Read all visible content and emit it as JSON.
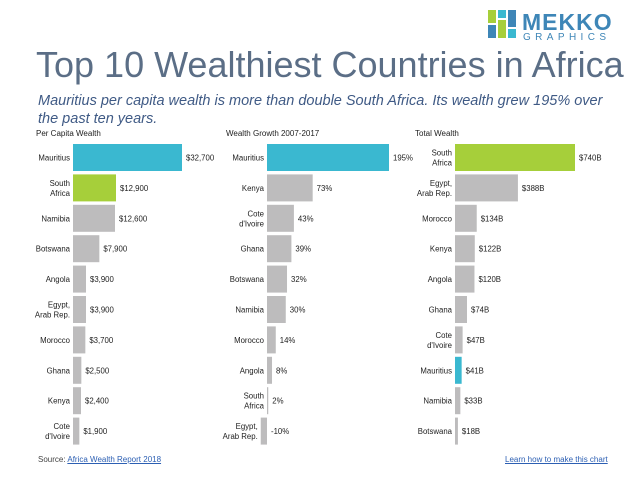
{
  "brand": {
    "name": "MEKKO",
    "tagline": "GRAPHICS"
  },
  "colors": {
    "cyan": "#3ab8d0",
    "green": "#a6cf3a",
    "gray": "#bdbcbd",
    "text": "#5b6e86",
    "brand": "#3e86b7"
  },
  "title": "Top 10 Wealthiest Countries in Africa",
  "subtitle": "Mauritius per capita wealth is more than double South Africa.  Its wealth grew 195% over the past ten years.",
  "footer": {
    "source_label": "Source:",
    "source_link": "Africa Wealth Report 2018",
    "howto_link": "Learn how to make this chart"
  },
  "chart_data": [
    {
      "type": "bar",
      "orientation": "horizontal",
      "title": "Per Capita Wealth",
      "categories": [
        "Mauritius",
        "South Africa",
        "Namibia",
        "Botswana",
        "Angola",
        "Egypt, Arab Rep.",
        "Morocco",
        "Ghana",
        "Kenya",
        "Cote d'Ivoire"
      ],
      "values": [
        32700,
        12900,
        12600,
        7900,
        3900,
        3900,
        3700,
        2500,
        2400,
        1900
      ],
      "labels": [
        "$32,700",
        "$12,900",
        "$12,600",
        "$7,900",
        "$3,900",
        "$3,900",
        "$3,700",
        "$2,500",
        "$2,400",
        "$1,900"
      ],
      "colors": [
        "cyan",
        "green",
        "gray",
        "gray",
        "gray",
        "gray",
        "gray",
        "gray",
        "gray",
        "gray"
      ]
    },
    {
      "type": "bar",
      "orientation": "horizontal",
      "title": "Wealth Growth 2007-2017",
      "categories": [
        "Mauritius",
        "Kenya",
        "Cote d'Ivoire",
        "Ghana",
        "Botswana",
        "Namibia",
        "Morocco",
        "Angola",
        "South Africa",
        "Egypt, Arab Rep."
      ],
      "values": [
        195,
        73,
        43,
        39,
        32,
        30,
        14,
        8,
        2,
        -10
      ],
      "labels": [
        "195%",
        "73%",
        "43%",
        "39%",
        "32%",
        "30%",
        "14%",
        "8%",
        "2%",
        "-10%"
      ],
      "colors": [
        "cyan",
        "gray",
        "gray",
        "gray",
        "gray",
        "gray",
        "gray",
        "gray",
        "gray",
        "gray"
      ]
    },
    {
      "type": "bar",
      "orientation": "horizontal",
      "title": "Total Wealth",
      "categories": [
        "South Africa",
        "Egypt, Arab Rep.",
        "Morocco",
        "Kenya",
        "Angola",
        "Ghana",
        "Cote d'Ivoire",
        "Mauritius",
        "Namibia",
        "Botswana"
      ],
      "values": [
        740,
        388,
        134,
        122,
        120,
        74,
        47,
        41,
        33,
        18
      ],
      "labels": [
        "$740B",
        "$388B",
        "$134B",
        "$122B",
        "$120B",
        "$74B",
        "$47B",
        "$41B",
        "$33B",
        "$18B"
      ],
      "colors": [
        "green",
        "gray",
        "gray",
        "gray",
        "gray",
        "gray",
        "gray",
        "cyan",
        "gray",
        "gray"
      ]
    }
  ]
}
